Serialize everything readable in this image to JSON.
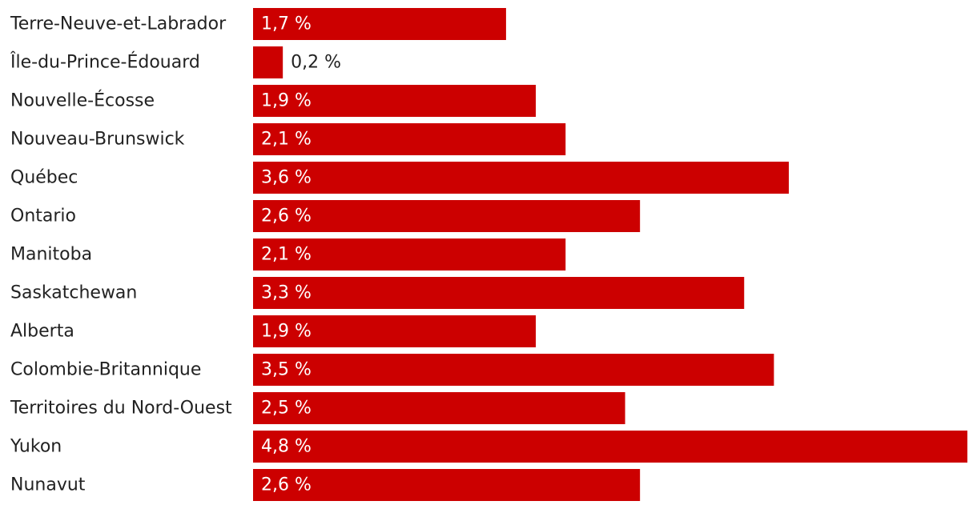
{
  "chart_data": {
    "type": "bar",
    "orientation": "horizontal",
    "categories": [
      "Terre-Neuve-et-Labrador",
      "Île-du-Prince-Édouard",
      "Nouvelle-Écosse",
      "Nouveau-Brunswick",
      "Québec",
      "Ontario",
      "Manitoba",
      "Saskatchewan",
      "Alberta",
      "Colombie-Britannique",
      "Territoires du Nord-Ouest",
      "Yukon",
      "Nunavut"
    ],
    "values": [
      1.7,
      0.2,
      1.9,
      2.1,
      3.6,
      2.6,
      2.1,
      3.3,
      1.9,
      3.5,
      2.5,
      4.8,
      2.6
    ],
    "value_labels": [
      "1,7 %",
      "0,2 %",
      "1,9 %",
      "2,1 %",
      "3,6 %",
      "2,6 %",
      "2,1 %",
      "3,3 %",
      "1,9 %",
      "3,5 %",
      "2,5 %",
      "4,8 %",
      "2,6 %"
    ],
    "xlim": [
      0,
      4.8
    ],
    "grid": false,
    "legend": "none",
    "title": "",
    "xlabel": "",
    "ylabel": "",
    "colors": {
      "bar": "#cc0000",
      "label_inside": "#ffffff",
      "label_outside": "#222222",
      "category_text": "#222222"
    }
  }
}
